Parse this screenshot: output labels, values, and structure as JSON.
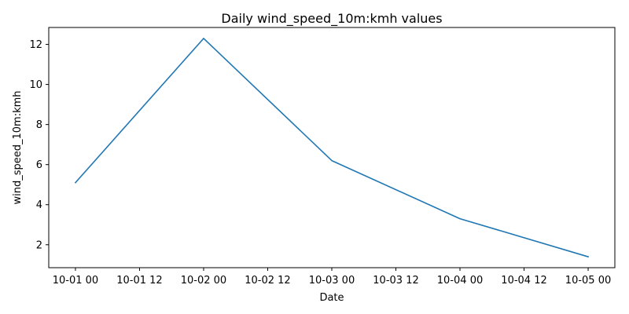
{
  "chart_data": {
    "type": "line",
    "title": "Daily wind_speed_10m:kmh values",
    "xlabel": "Date",
    "ylabel": "wind_speed_10m:kmh",
    "x_ticks": [
      "10-01 00",
      "10-01 12",
      "10-02 00",
      "10-02 12",
      "10-03 00",
      "10-03 12",
      "10-04 00",
      "10-04 12",
      "10-05 00"
    ],
    "y_ticks": [
      2,
      4,
      6,
      8,
      10,
      12
    ],
    "xlim": [
      "09-30 19",
      "10-05 05"
    ],
    "ylim": [
      0.855,
      12.845
    ],
    "grid": false,
    "series": [
      {
        "color": "#1f77b4",
        "x": [
          "10-01 00",
          "10-02 00",
          "10-03 00",
          "10-04 00",
          "10-05 00"
        ],
        "values": [
          5.1,
          12.3,
          6.2,
          3.3,
          1.4
        ]
      }
    ]
  }
}
